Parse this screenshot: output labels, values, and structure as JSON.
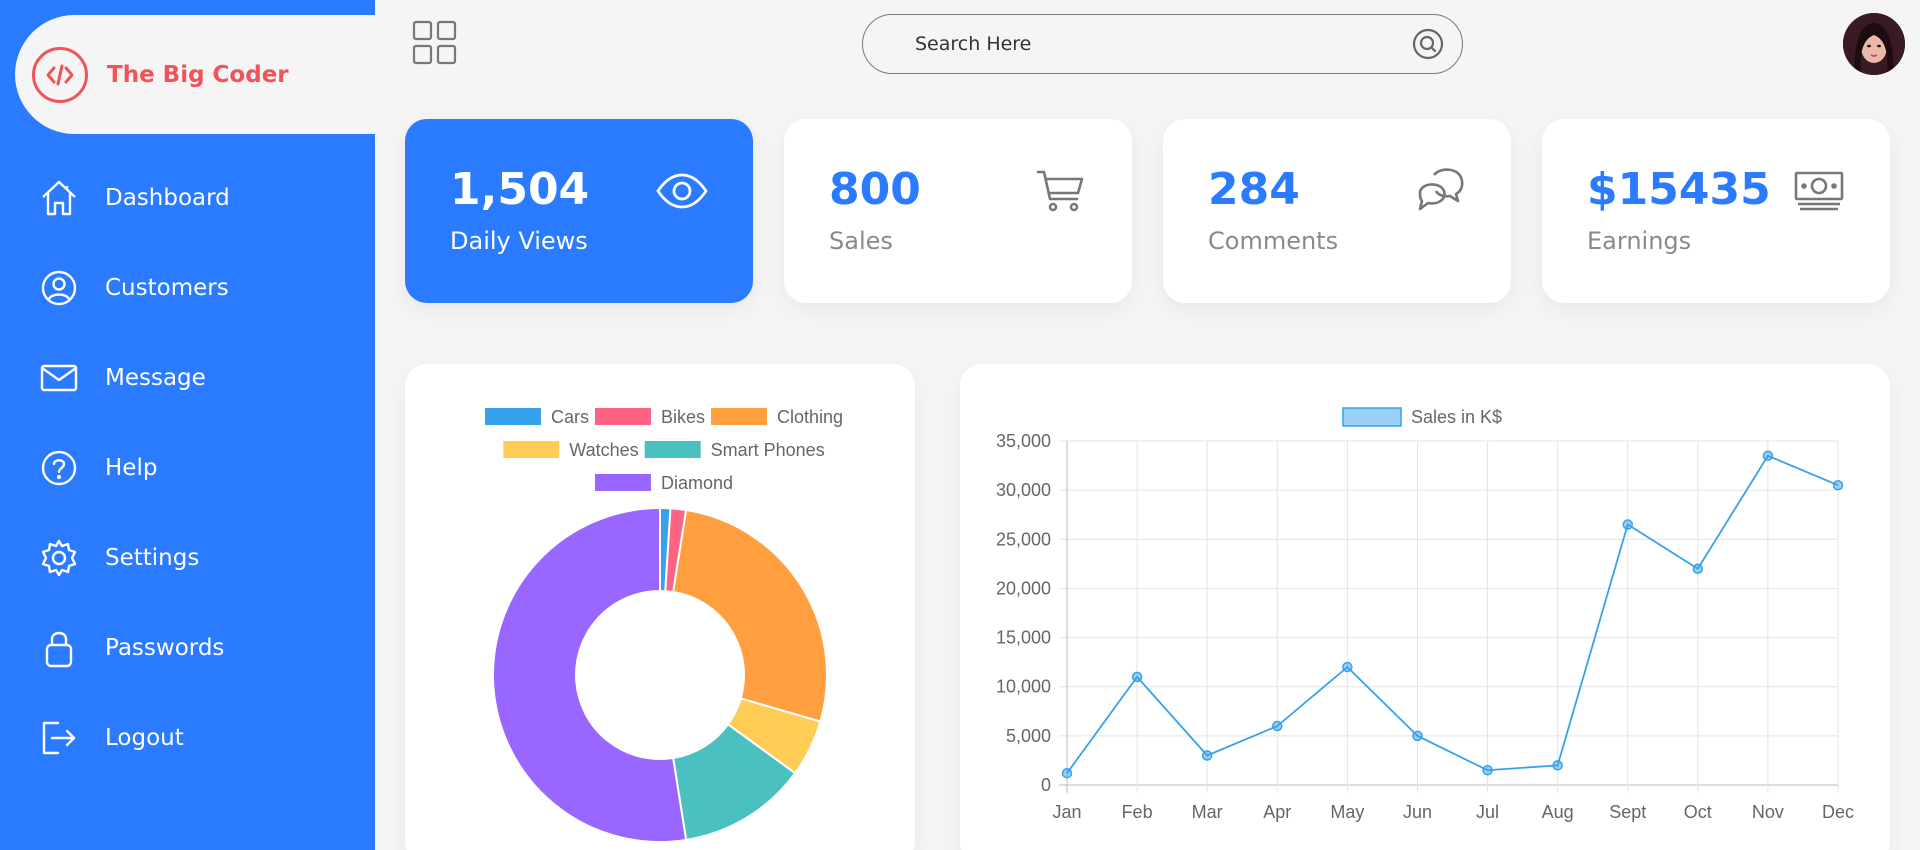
{
  "brand": {
    "title": "The Big Coder"
  },
  "nav": [
    {
      "label": "Dashboard",
      "icon": "home-icon"
    },
    {
      "label": "Customers",
      "icon": "user-circle-icon"
    },
    {
      "label": "Message",
      "icon": "mail-icon"
    },
    {
      "label": "Help",
      "icon": "help-icon"
    },
    {
      "label": "Settings",
      "icon": "gear-icon"
    },
    {
      "label": "Passwords",
      "icon": "lock-icon"
    },
    {
      "label": "Logout",
      "icon": "logout-icon"
    }
  ],
  "search": {
    "placeholder": "Search Here"
  },
  "cards": [
    {
      "number": "1,504",
      "label": "Daily Views",
      "icon": "eye-icon",
      "active": true
    },
    {
      "number": "800",
      "label": "Sales",
      "icon": "cart-icon",
      "active": false
    },
    {
      "number": "284",
      "label": "Comments",
      "icon": "chat-icon",
      "active": false
    },
    {
      "number": "$15435",
      "label": "Earnings",
      "icon": "money-icon",
      "active": false
    }
  ],
  "colors": {
    "accent": "#2a7bff",
    "brand": "#f0545a",
    "background": "#f5f5f5"
  },
  "chart_data": [
    {
      "type": "pie",
      "donut": true,
      "legend_position": "top",
      "categories": [
        "Cars",
        "Bikes",
        "Clothing",
        "Watches",
        "Smart Phones",
        "Diamond"
      ],
      "values": [
        1,
        1.5,
        27,
        5.5,
        12.5,
        52.5
      ],
      "colors": [
        "#36a2eb",
        "#ff6384",
        "#ff9f40",
        "#ffcd56",
        "#4bc0c0",
        "#9966ff"
      ]
    },
    {
      "type": "line",
      "legend_position": "top",
      "categories": [
        "Jan",
        "Feb",
        "Mar",
        "Apr",
        "May",
        "Jun",
        "Jul",
        "Aug",
        "Sept",
        "Oct",
        "Nov",
        "Dec"
      ],
      "series": [
        {
          "name": "Sales in K$",
          "values": [
            1200,
            11000,
            3000,
            6000,
            12000,
            5000,
            1500,
            2000,
            26500,
            22000,
            33500,
            30500
          ],
          "color": "#36a2eb"
        }
      ],
      "ylim": [
        0,
        35000
      ],
      "yticks": [
        0,
        5000,
        10000,
        15000,
        20000,
        25000,
        30000,
        35000
      ],
      "ytick_labels": [
        "0",
        "5,000",
        "10,000",
        "15,000",
        "20,000",
        "25,000",
        "30,000",
        "35,000"
      ],
      "grid": true
    }
  ]
}
